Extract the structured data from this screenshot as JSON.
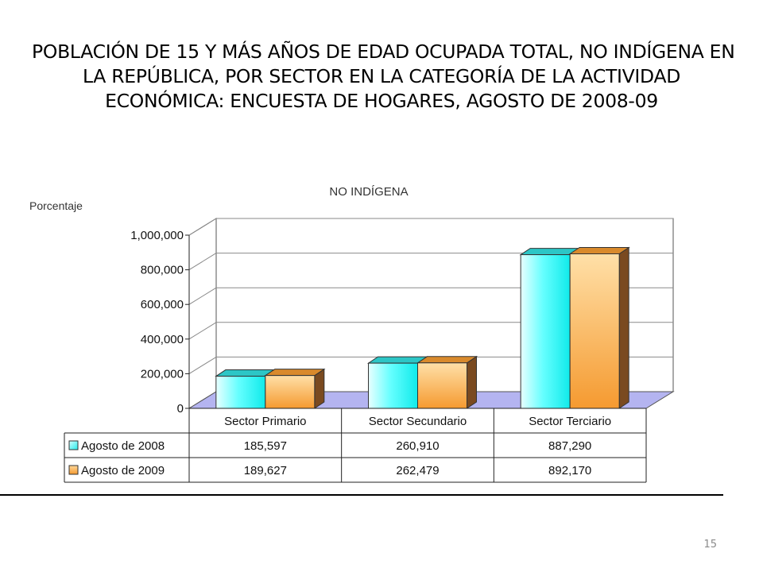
{
  "slide": {
    "title_lines": [
      "POBLACIÓN DE 15 Y MÁS AÑOS DE EDAD OCUPADA TOTAL, NO INDÍGENA EN",
      "LA REPÚBLICA, POR SECTOR EN LA CATEGORÍA DE LA ACTIVIDAD",
      "ECONÓMICA: ENCUESTA DE HOGARES, AGOSTO DE 2008-09"
    ],
    "page_number": "15"
  },
  "chart_data": {
    "type": "bar",
    "title": "NO INDÍGENA",
    "ylabel": "Porcentaje",
    "xlabel": "",
    "categories": [
      "Sector Primario",
      "Sector Secundario",
      "Sector Terciario"
    ],
    "series": [
      {
        "name": "Agosto de 2008",
        "values": [
          185597,
          260910,
          887290
        ],
        "display_values": [
          "185,597",
          "260,910",
          "887,290"
        ],
        "color": "#33f0f0"
      },
      {
        "name": "Agosto de 2009",
        "values": [
          189627,
          262479,
          892170
        ],
        "display_values": [
          "189,627",
          "262,479",
          "892,170"
        ],
        "color": "#f5a040"
      }
    ],
    "ylim": [
      0,
      1000000
    ],
    "yticks": [
      0,
      200000,
      400000,
      600000,
      800000,
      1000000
    ],
    "ytick_labels": [
      "0",
      "200,000",
      "400,000",
      "600,000",
      "800,000",
      "1,000,000"
    ],
    "grid": true,
    "floor_color": "#b4b4f0",
    "legend_placement": "data-table"
  }
}
